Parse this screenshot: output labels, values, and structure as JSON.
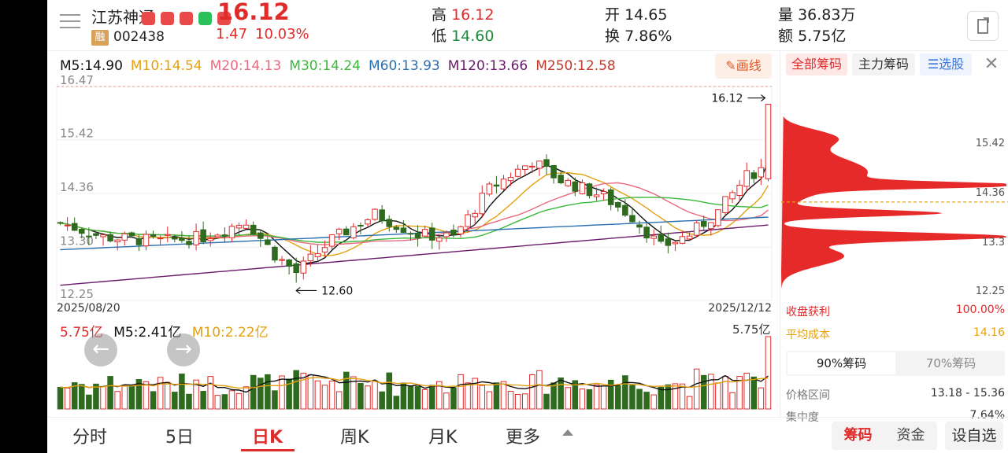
{
  "stock": {
    "name": "江苏神通",
    "margin_badge": "融",
    "code": "002438",
    "price": "16.12",
    "change": "1.47",
    "change_pct": "10.03%"
  },
  "quote": {
    "high_label": "高",
    "high": "16.12",
    "low_label": "低",
    "low": "14.60",
    "open_label": "开",
    "open": "14.65",
    "turnover_label": "换",
    "turnover": "7.86%",
    "volume_label": "量",
    "volume": "36.83万",
    "amount_label": "额",
    "amount": "5.75亿"
  },
  "ma_legend": [
    {
      "label": "M5:14.90",
      "color": "#111111"
    },
    {
      "label": "M10:14.54",
      "color": "#e5a010"
    },
    {
      "label": "M20:14.13",
      "color": "#e86a80"
    },
    {
      "label": "M30:14.24",
      "color": "#3cb83c"
    },
    {
      "label": "M60:13.93",
      "color": "#2a6fb0"
    },
    {
      "label": "M120:13.66",
      "color": "#6a1a6a"
    },
    {
      "label": "M250:12.58",
      "color": "#c0392b"
    }
  ],
  "draw_button": "画线",
  "kline": {
    "y_ticks": [
      "16.47",
      "15.42",
      "14.36",
      "13.30",
      "12.25"
    ],
    "y_tick_values": [
      16.47,
      15.42,
      14.36,
      13.3,
      12.25
    ],
    "high_marker": "16.12",
    "low_marker": "12.60",
    "date_start": "2025/08/20",
    "date_end": "2025/12/12"
  },
  "volume_panel": {
    "vol_label": "5.75亿",
    "m5_label": "M5:2.41亿",
    "m10_label": "M10:2.22亿",
    "max_label": "5.75亿"
  },
  "chart_data": {
    "type": "candlestick",
    "ylim": [
      12.25,
      16.47
    ],
    "x_range": [
      "2025/08/20",
      "2025/12/12"
    ],
    "last": {
      "open": 14.65,
      "high": 16.12,
      "low": 14.6,
      "close": 16.12
    },
    "period_high": 16.12,
    "period_low": 12.6,
    "ma": {
      "M5": 14.9,
      "M10": 14.54,
      "M20": 14.13,
      "M30": 14.24,
      "M60": 13.93,
      "M120": 13.66,
      "M250": 12.58
    },
    "volume_last": "5.75亿",
    "volume_ma": {
      "M5": "2.41亿",
      "M10": "2.22亿"
    }
  },
  "chips": {
    "tabs": [
      "全部筹码",
      "主力筹码",
      "选股"
    ],
    "y_ticks": [
      "15.42",
      "14.36",
      "13.3",
      "12.25"
    ],
    "y_tick_values": [
      15.42,
      14.36,
      13.3,
      12.25
    ],
    "profit_label": "收盘获利",
    "profit_value": "100.00%",
    "avg_cost_label": "平均成本",
    "avg_cost_value": "14.16",
    "segment": [
      "90%筹码",
      "70%筹码"
    ],
    "range_label": "价格区间",
    "range_value": "13.18 - 15.36",
    "concentration_label": "集中度",
    "concentration_value": "7.64%"
  },
  "bottom_tabs": [
    "分时",
    "5日",
    "日K",
    "周K",
    "月K",
    "更多"
  ],
  "bottom_right": [
    "筹码",
    "资金",
    "设自选"
  ],
  "colors": {
    "up": "#e02b2b",
    "down": "#2f6b1f",
    "accent": "#3a78e0"
  }
}
